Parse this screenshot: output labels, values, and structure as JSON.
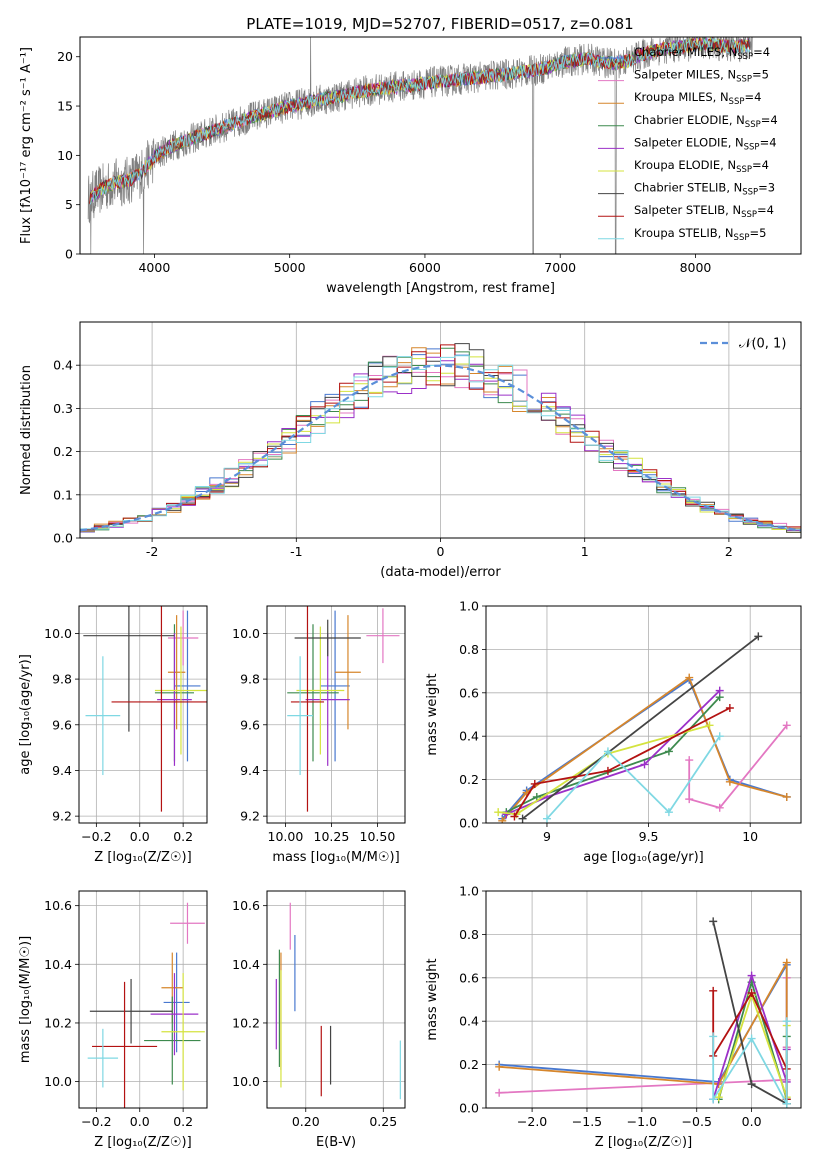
{
  "figure": {
    "title": "PLATE=1019, MJD=52707, FIBERID=0517, z=0.081"
  },
  "chart_data": [
    {
      "id": "spectrum",
      "type": "line",
      "xlabel": "wavelength [Angstrom, rest frame]",
      "ylabel": "Flux [fλ10⁻¹⁷ erg cm⁻² s⁻¹ A⁻¹]",
      "xlim": [
        3450,
        8780
      ],
      "ylim": [
        0,
        22
      ],
      "xticks": [
        4000,
        5000,
        6000,
        7000,
        8000
      ],
      "yticks": [
        0,
        5,
        10,
        15,
        20
      ],
      "grid": false,
      "legend_position": "right",
      "observed": {
        "x": [
          3500,
          3600,
          3700,
          3800,
          3900,
          4000,
          4100,
          4200,
          4300,
          4400,
          4500,
          4600,
          4700,
          4800,
          4900,
          5000,
          5100,
          5200,
          5300,
          5400,
          5500,
          5600,
          5700,
          5800,
          5900,
          6000,
          6100,
          6200,
          6300,
          6400,
          6500,
          6600,
          6700,
          6800,
          6900,
          7000,
          7100,
          7200,
          7300,
          7400,
          7500,
          7600,
          7700,
          7800,
          7900,
          8000,
          8100,
          8200,
          8300,
          8400
        ],
        "y": [
          5.5,
          6.5,
          7.2,
          7.4,
          8.2,
          9.8,
          10.8,
          11.3,
          11.8,
          12.3,
          12.8,
          13.3,
          13.8,
          14.2,
          14.6,
          15.0,
          15.3,
          15.6,
          15.8,
          16.1,
          16.4,
          16.6,
          16.8,
          17.0,
          17.1,
          17.3,
          17.5,
          17.6,
          17.8,
          17.9,
          18.1,
          18.2,
          18.4,
          18.6,
          18.9,
          19.4,
          19.6,
          19.8,
          19.5,
          19.3,
          19.6,
          20.2,
          20.6,
          20.9,
          21.0,
          21.2,
          21.3,
          21.1,
          21.0,
          21.2
        ]
      },
      "series": [
        {
          "name": "Chabrier MILES, N_SSP=4",
          "label": "Chabrier MILES, N",
          "sub": "SSP",
          "suffix": "=4",
          "color": "#4878cf"
        },
        {
          "name": "Salpeter MILES, N_SSP=5",
          "label": "Salpeter MILES, N",
          "sub": "SSP",
          "suffix": "=5",
          "color": "#e377c2"
        },
        {
          "name": "Kroupa MILES, N_SSP=4",
          "label": "Kroupa MILES, N",
          "sub": "SSP",
          "suffix": "=4",
          "color": "#d6862c"
        },
        {
          "name": "Chabrier ELODIE, N_SSP=4",
          "label": "Chabrier ELODIE, N",
          "sub": "SSP",
          "suffix": "=4",
          "color": "#3d8a4e"
        },
        {
          "name": "Salpeter ELODIE, N_SSP=4",
          "label": "Salpeter ELODIE, N",
          "sub": "SSP",
          "suffix": "=4",
          "color": "#9b30c8"
        },
        {
          "name": "Kroupa ELODIE, N_SSP=4",
          "label": "Kroupa ELODIE, N",
          "sub": "SSP",
          "suffix": "=4",
          "color": "#d4e33f"
        },
        {
          "name": "Chabrier STELIB, N_SSP=3",
          "label": "Chabrier STELIB, N",
          "sub": "SSP",
          "suffix": "=3",
          "color": "#444444"
        },
        {
          "name": "Salpeter STELIB, N_SSP=4",
          "label": "Salpeter STELIB, N",
          "sub": "SSP",
          "suffix": "=4",
          "color": "#b31212"
        },
        {
          "name": "Kroupa STELIB, N_SSP=5",
          "label": "Kroupa STELIB, N",
          "sub": "SSP",
          "suffix": "=5",
          "color": "#7fd8e3"
        }
      ]
    },
    {
      "id": "residuals",
      "type": "bar",
      "xlabel": "(data-model)/error",
      "ylabel": "Normed distribution",
      "xlim": [
        -2.5,
        2.5
      ],
      "ylim": [
        0,
        0.5
      ],
      "xticks": [
        -2,
        -1,
        0,
        1,
        2
      ],
      "yticks": [
        0.0,
        0.1,
        0.2,
        0.3,
        0.4
      ],
      "grid": true,
      "legend_position": "top-right",
      "bins": [
        -2.5,
        -2.4,
        -2.3,
        -2.2,
        -2.1,
        -2.0,
        -1.9,
        -1.8,
        -1.7,
        -1.6,
        -1.5,
        -1.4,
        -1.3,
        -1.2,
        -1.1,
        -1.0,
        -0.9,
        -0.8,
        -0.7,
        -0.6,
        -0.5,
        -0.4,
        -0.3,
        -0.2,
        -0.1,
        0.0,
        0.1,
        0.2,
        0.3,
        0.4,
        0.5,
        0.6,
        0.7,
        0.8,
        0.9,
        1.0,
        1.1,
        1.2,
        1.3,
        1.4,
        1.5,
        1.6,
        1.7,
        1.8,
        1.9,
        2.0,
        2.1,
        2.2,
        2.3,
        2.4,
        2.5
      ],
      "reference_curve": {
        "name": "N(0,1)",
        "label": "𝒩(0, 1)",
        "mu": 0,
        "sigma": 1,
        "color": "#5b8fd9"
      }
    },
    {
      "id": "age_vs_Z",
      "type": "scatter",
      "xlabel": "Z [log₁₀(Z/Z☉)]",
      "ylabel": "age  [log₁₀(age/yr)]",
      "xlim": [
        -0.28,
        0.31
      ],
      "ylim": [
        9.17,
        10.12
      ],
      "xticks": [
        -0.2,
        0.0,
        0.2
      ],
      "xticklabels": [
        "−0.2",
        "0.0",
        "0.2"
      ],
      "yticks": [
        9.2,
        9.4,
        9.6,
        9.8,
        10.0
      ],
      "grid": true,
      "points": [
        {
          "x": 0.22,
          "y": 9.77,
          "xerr": 0.06,
          "yerr": 0.33
        },
        {
          "x": 0.2,
          "y": 9.98,
          "xerr": 0.07,
          "yerr": 0.12
        },
        {
          "x": 0.17,
          "y": 9.83,
          "xerr": 0.04,
          "yerr": 0.25
        },
        {
          "x": 0.16,
          "y": 9.74,
          "xerr": 0.09,
          "yerr": 0.3
        },
        {
          "x": 0.16,
          "y": 9.71,
          "xerr": 0.08,
          "yerr": 0.29
        },
        {
          "x": 0.19,
          "y": 9.75,
          "xerr": 0.12,
          "yerr": 0.28
        },
        {
          "x": -0.05,
          "y": 9.99,
          "xerr": 0.21,
          "yerr": 0.42
        },
        {
          "x": 0.1,
          "y": 9.7,
          "xerr": 0.23,
          "yerr": 0.48
        },
        {
          "x": -0.17,
          "y": 9.64,
          "xerr": 0.08,
          "yerr": 0.26
        }
      ]
    },
    {
      "id": "age_vs_mass",
      "type": "scatter",
      "xlabel": "mass [log₁₀(M/M☉)]",
      "ylabel": "",
      "xlim": [
        9.9,
        10.65
      ],
      "ylim": [
        9.17,
        10.12
      ],
      "xticks": [
        10.0,
        10.25,
        10.5
      ],
      "xticklabels": [
        "10.00",
        "10.25",
        "10.50"
      ],
      "yticks": [
        9.2,
        9.4,
        9.6,
        9.8,
        10.0
      ],
      "grid": true,
      "points": [
        {
          "x": 10.27,
          "y": 9.77,
          "xerr": 0.08,
          "yerr": 0.33
        },
        {
          "x": 10.53,
          "y": 9.99,
          "xerr": 0.09,
          "yerr": 0.12
        },
        {
          "x": 10.34,
          "y": 9.83,
          "xerr": 0.07,
          "yerr": 0.25
        },
        {
          "x": 10.15,
          "y": 9.74,
          "xerr": 0.14,
          "yerr": 0.3
        },
        {
          "x": 10.23,
          "y": 9.71,
          "xerr": 0.12,
          "yerr": 0.29
        },
        {
          "x": 10.19,
          "y": 9.75,
          "xerr": 0.13,
          "yerr": 0.28
        },
        {
          "x": 10.23,
          "y": 9.98,
          "xerr": 0.18,
          "yerr": 0.08
        },
        {
          "x": 10.12,
          "y": 9.7,
          "xerr": 0.09,
          "yerr": 0.48
        },
        {
          "x": 10.08,
          "y": 9.64,
          "xerr": 0.07,
          "yerr": 0.26
        }
      ]
    },
    {
      "id": "weight_vs_age",
      "type": "line",
      "xlabel": "age  [log₁₀(age/yr)]",
      "ylabel": "mass weight",
      "xlim": [
        8.7,
        10.25
      ],
      "ylim": [
        0,
        1
      ],
      "xticks": [
        9.0,
        9.5,
        10.0
      ],
      "yticks": [
        0.0,
        0.2,
        0.4,
        0.6,
        0.8,
        1.0
      ],
      "grid": true,
      "series": [
        {
          "x": [
            8.78,
            8.9,
            9.7,
            9.9,
            10.18
          ],
          "y": [
            0.02,
            0.15,
            0.66,
            0.2,
            0.12
          ]
        },
        {
          "x": [
            9.7,
            9.7,
            9.85,
            10.18
          ],
          "y": [
            0.29,
            0.11,
            0.07,
            0.45
          ]
        },
        {
          "x": [
            8.78,
            8.9,
            9.7,
            9.9,
            10.18
          ],
          "y": [
            0.01,
            0.14,
            0.67,
            0.19,
            0.12
          ]
        },
        {
          "x": [
            8.8,
            8.95,
            9.6,
            9.85
          ],
          "y": [
            0.05,
            0.12,
            0.33,
            0.58
          ]
        },
        {
          "x": [
            8.8,
            9.0,
            9.48,
            9.85
          ],
          "y": [
            0.04,
            0.12,
            0.27,
            0.61
          ]
        },
        {
          "x": [
            8.76,
            8.85,
            9.3,
            9.8
          ],
          "y": [
            0.05,
            0.04,
            0.32,
            0.45
          ]
        },
        {
          "x": [
            8.88,
            10.04
          ],
          "y": [
            0.02,
            0.86
          ]
        },
        {
          "x": [
            8.84,
            8.94,
            9.3,
            9.9
          ],
          "y": [
            0.03,
            0.18,
            0.24,
            0.53
          ]
        },
        {
          "x": [
            9.0,
            9.3,
            9.6,
            9.85
          ],
          "y": [
            0.02,
            0.33,
            0.05,
            0.4
          ]
        }
      ]
    },
    {
      "id": "mass_vs_Z",
      "type": "scatter",
      "xlabel": "Z [log₁₀(Z/Z☉)]",
      "ylabel": "mass [log₁₀(M/M☉)]",
      "xlim": [
        -0.28,
        0.31
      ],
      "ylim": [
        9.91,
        10.65
      ],
      "xticks": [
        -0.2,
        0.0,
        0.2
      ],
      "xticklabels": [
        "−0.2",
        "0.0",
        "0.2"
      ],
      "yticks": [
        10.0,
        10.2,
        10.4,
        10.6
      ],
      "grid": true,
      "points": [
        {
          "x": 0.17,
          "y": 10.27,
          "xerr": 0.06,
          "yerr": 0.17
        },
        {
          "x": 0.22,
          "y": 10.54,
          "xerr": 0.08,
          "yerr": 0.07
        },
        {
          "x": 0.15,
          "y": 10.32,
          "xerr": 0.05,
          "yerr": 0.12
        },
        {
          "x": 0.15,
          "y": 10.14,
          "xerr": 0.13,
          "yerr": 0.15
        },
        {
          "x": 0.16,
          "y": 10.23,
          "xerr": 0.11,
          "yerr": 0.14
        },
        {
          "x": 0.2,
          "y": 10.17,
          "xerr": 0.1,
          "yerr": 0.2
        },
        {
          "x": -0.04,
          "y": 10.24,
          "xerr": 0.19,
          "yerr": 0.11
        },
        {
          "x": -0.07,
          "y": 10.12,
          "xerr": 0.15,
          "yerr": 0.22
        },
        {
          "x": -0.17,
          "y": 10.08,
          "xerr": 0.07,
          "yerr": 0.1
        }
      ]
    },
    {
      "id": "mass_vs_EBV",
      "type": "scatter",
      "xlabel": "E(B-V)",
      "ylabel": "",
      "xlim": [
        0.175,
        0.264
      ],
      "ylim": [
        9.91,
        10.65
      ],
      "xticks": [
        0.2,
        0.25
      ],
      "xticklabels": [
        "0.20",
        "0.25"
      ],
      "yticks": [
        10.0,
        10.2,
        10.4,
        10.6
      ],
      "grid": true,
      "points": [
        {
          "x": 0.193,
          "y": 10.37,
          "yerr": 0.13
        },
        {
          "x": 0.19,
          "y": 10.53,
          "yerr": 0.08
        },
        {
          "x": 0.184,
          "y": 10.24,
          "yerr": 0.2
        },
        {
          "x": 0.183,
          "y": 10.25,
          "yerr": 0.2
        },
        {
          "x": 0.181,
          "y": 10.23,
          "yerr": 0.12
        },
        {
          "x": 0.184,
          "y": 10.18,
          "yerr": 0.2
        },
        {
          "x": 0.216,
          "y": 10.09,
          "yerr": 0.1
        },
        {
          "x": 0.21,
          "y": 10.07,
          "yerr": 0.12
        },
        {
          "x": 0.261,
          "y": 10.04,
          "yerr": 0.1
        }
      ]
    },
    {
      "id": "weight_vs_Z",
      "type": "line",
      "xlabel": "Z [log₁₀(Z/Z☉)]",
      "ylabel": "mass weight",
      "xlim": [
        -2.42,
        0.45
      ],
      "ylim": [
        0,
        1
      ],
      "xticks": [
        -2.0,
        -1.5,
        -1.0,
        -0.5,
        0.0
      ],
      "xticklabels": [
        "−2.0",
        "−1.5",
        "−1.0",
        "−0.5",
        "0.0"
      ],
      "yticks": [
        0.0,
        0.2,
        0.4,
        0.6,
        0.8,
        1.0
      ],
      "grid": true,
      "series": [
        {
          "x": [
            -2.3,
            -0.3,
            0.32,
            0.32
          ],
          "y": [
            0.2,
            0.12,
            0.66,
            0.02
          ]
        },
        {
          "x": [
            -2.3,
            0.32,
            0.32,
            0.32
          ],
          "y": [
            0.07,
            0.13,
            0.6,
            0.28
          ]
        },
        {
          "x": [
            -2.3,
            -0.3,
            0.32,
            0.32
          ],
          "y": [
            0.19,
            0.11,
            0.67,
            0.02
          ]
        },
        {
          "x": [
            -0.3,
            0.0,
            0.32,
            0.32
          ],
          "y": [
            0.04,
            0.58,
            0.04,
            0.33
          ]
        },
        {
          "x": [
            -0.35,
            0.0,
            0.32,
            0.32
          ],
          "y": [
            0.04,
            0.61,
            0.12,
            0.27
          ]
        },
        {
          "x": [
            -0.3,
            0.0,
            0.32,
            0.32
          ],
          "y": [
            0.05,
            0.52,
            0.05,
            0.38
          ]
        },
        {
          "x": [
            -0.35,
            0.0,
            0.32
          ],
          "y": [
            0.86,
            0.11,
            0.02
          ]
        },
        {
          "x": [
            -0.35,
            -0.35,
            0.0,
            0.32,
            0.32
          ],
          "y": [
            0.54,
            0.24,
            0.53,
            0.18,
            0.04
          ]
        },
        {
          "x": [
            -0.35,
            -0.35,
            0.0,
            0.32,
            0.32
          ],
          "y": [
            0.33,
            0.04,
            0.32,
            0.02,
            0.4
          ]
        }
      ]
    }
  ]
}
